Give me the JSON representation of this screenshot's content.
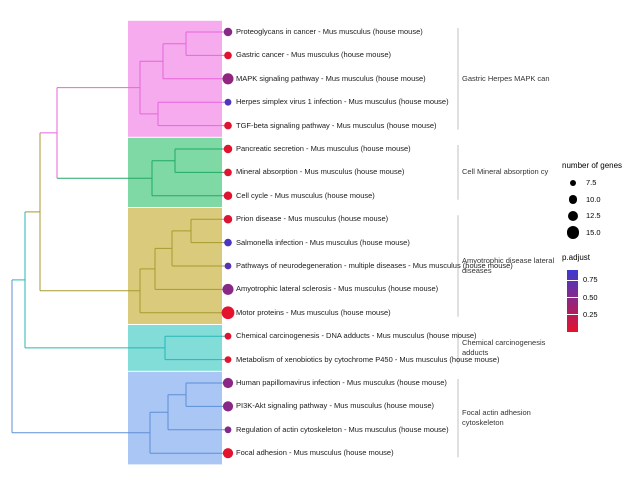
{
  "chart_data": {
    "type": "dendrogram",
    "title": "",
    "items": [
      {
        "label": "Proteoglycans in cancer - Mus musculus (house mouse)",
        "cluster": 0,
        "genes": 10,
        "padj": 0.5
      },
      {
        "label": "Gastric cancer - Mus musculus (house mouse)",
        "cluster": 0,
        "genes": 9,
        "padj": 0.03
      },
      {
        "label": "MAPK signaling pathway - Mus musculus (house mouse)",
        "cluster": 0,
        "genes": 13,
        "padj": 0.45
      },
      {
        "label": "Herpes simplex virus 1 infection - Mus musculus (house mouse)",
        "cluster": 0,
        "genes": 8,
        "padj": 0.8
      },
      {
        "label": "TGF-beta signaling pathway - Mus musculus (house mouse)",
        "cluster": 0,
        "genes": 9,
        "padj": 0.04
      },
      {
        "label": "Pancreatic secretion - Mus musculus (house mouse)",
        "cluster": 1,
        "genes": 10,
        "padj": 0.02
      },
      {
        "label": "Mineral absorption - Mus musculus (house mouse)",
        "cluster": 1,
        "genes": 9,
        "padj": 0.03
      },
      {
        "label": "Cell cycle - Mus musculus (house mouse)",
        "cluster": 1,
        "genes": 10,
        "padj": 0.03
      },
      {
        "label": "Prion disease - Mus musculus (house mouse)",
        "cluster": 2,
        "genes": 10,
        "padj": 0.05
      },
      {
        "label": "Salmonella infection - Mus musculus (house mouse)",
        "cluster": 2,
        "genes": 9,
        "padj": 0.82
      },
      {
        "label": "Pathways of neurodegeneration - multiple diseases - Mus musculus (house mouse)",
        "cluster": 2,
        "genes": 8,
        "padj": 0.75
      },
      {
        "label": "Amyotrophic lateral sclerosis - Mus musculus (house mouse)",
        "cluster": 2,
        "genes": 13,
        "padj": 0.5
      },
      {
        "label": "Motor proteins - Mus musculus (house mouse)",
        "cluster": 2,
        "genes": 15,
        "padj": 0.01
      },
      {
        "label": "Chemical carcinogenesis - DNA adducts - Mus musculus (house mouse)",
        "cluster": 3,
        "genes": 8,
        "padj": 0.03
      },
      {
        "label": "Metabolism of xenobiotics by cytochrome P450 - Mus musculus (house mouse)",
        "cluster": 3,
        "genes": 8,
        "padj": 0.04
      },
      {
        "label": "Human papillomavirus infection - Mus musculus (house mouse)",
        "cluster": 4,
        "genes": 12,
        "padj": 0.48
      },
      {
        "label": "PI3K-Akt signaling pathway - Mus musculus (house mouse)",
        "cluster": 4,
        "genes": 12,
        "padj": 0.5
      },
      {
        "label": "Regulation of actin cytoskeleton - Mus musculus (house mouse)",
        "cluster": 4,
        "genes": 8,
        "padj": 0.52
      },
      {
        "label": "Focal adhesion - Mus musculus (house mouse)",
        "cluster": 4,
        "genes": 12,
        "padj": 0.02
      }
    ],
    "clusters": [
      {
        "label_lines": [
          "Gastric Herpes MAPK can"
        ],
        "fill": "#F6ABEE",
        "line": "#E765DC"
      },
      {
        "label_lines": [
          "Cell Mineral absorption cy"
        ],
        "fill": "#7ED9A5",
        "line": "#23A966"
      },
      {
        "label_lines": [
          "Amyotrophic disease lateral",
          "diseases"
        ],
        "fill": "#DACB7C",
        "line": "#A79A2E"
      },
      {
        "label_lines": [
          "Chemical carcinogenesis",
          "adducts"
        ],
        "fill": "#82DDD8",
        "line": "#27B7B3"
      },
      {
        "label_lines": [
          "Focal actin adhesion",
          "cytoskeleton"
        ],
        "fill": "#A9C6F5",
        "line": "#5F8FD8"
      }
    ],
    "dendrogram_segments": [
      [
        186,
        32,
        228,
        32,
        0
      ],
      [
        186,
        55.4,
        228,
        55.4,
        0
      ],
      [
        186,
        32,
        186,
        55.4,
        0
      ],
      [
        163,
        43.7,
        186,
        43.7,
        0
      ],
      [
        163,
        78.8,
        228,
        78.8,
        0
      ],
      [
        163,
        43.7,
        163,
        78.8,
        0
      ],
      [
        158,
        102.2,
        228,
        102.2,
        0
      ],
      [
        158,
        125.6,
        228,
        125.6,
        0
      ],
      [
        158,
        102.2,
        158,
        125.6,
        0
      ],
      [
        140,
        61.2,
        163,
        61.2,
        0
      ],
      [
        140,
        113.9,
        158,
        113.9,
        0
      ],
      [
        140,
        61.2,
        140,
        113.9,
        0
      ],
      [
        57,
        87.6,
        140,
        87.6,
        0
      ],
      [
        57,
        87.6,
        57,
        178.2,
        0
      ],
      [
        40,
        132.9,
        57,
        132.9,
        0
      ],
      [
        175,
        149,
        228,
        149,
        1
      ],
      [
        175,
        172.4,
        228,
        172.4,
        1
      ],
      [
        175,
        149,
        175,
        172.4,
        1
      ],
      [
        152,
        160.7,
        175,
        160.7,
        1
      ],
      [
        152,
        195.8,
        228,
        195.8,
        1
      ],
      [
        152,
        160.7,
        152,
        195.8,
        1
      ],
      [
        57,
        178.2,
        152,
        178.2,
        1
      ],
      [
        191,
        219.2,
        228,
        219.2,
        2
      ],
      [
        191,
        242.6,
        228,
        242.6,
        2
      ],
      [
        191,
        219.2,
        191,
        242.6,
        2
      ],
      [
        172,
        230.9,
        191,
        230.9,
        2
      ],
      [
        172,
        266,
        228,
        266,
        2
      ],
      [
        172,
        230.9,
        172,
        266,
        2
      ],
      [
        155,
        248.4,
        172,
        248.4,
        2
      ],
      [
        155,
        289.4,
        228,
        289.4,
        2
      ],
      [
        155,
        248.4,
        155,
        289.4,
        2
      ],
      [
        140,
        268.9,
        155,
        268.9,
        2
      ],
      [
        140,
        312.8,
        228,
        312.8,
        2
      ],
      [
        140,
        268.9,
        140,
        312.8,
        2
      ],
      [
        40,
        290.8,
        140,
        290.8,
        2
      ],
      [
        40,
        132.9,
        40,
        290.8,
        2
      ],
      [
        25,
        211.9,
        40,
        211.9,
        2
      ],
      [
        165,
        336.2,
        228,
        336.2,
        3
      ],
      [
        165,
        359.6,
        228,
        359.6,
        3
      ],
      [
        165,
        336.2,
        165,
        359.6,
        3
      ],
      [
        25,
        347.9,
        165,
        347.9,
        3
      ],
      [
        25,
        211.9,
        25,
        347.9,
        3
      ],
      [
        12,
        279.9,
        25,
        279.9,
        3
      ],
      [
        186,
        383,
        228,
        383,
        4
      ],
      [
        186,
        406.4,
        228,
        406.4,
        4
      ],
      [
        186,
        383,
        186,
        406.4,
        4
      ],
      [
        168,
        394.7,
        186,
        394.7,
        4
      ],
      [
        168,
        429.8,
        228,
        429.8,
        4
      ],
      [
        168,
        394.7,
        168,
        429.8,
        4
      ],
      [
        150,
        412.2,
        168,
        412.2,
        4
      ],
      [
        150,
        453.2,
        228,
        453.2,
        4
      ],
      [
        150,
        412.2,
        150,
        453.2,
        4
      ],
      [
        12,
        432.7,
        150,
        432.7,
        4
      ],
      [
        12,
        279.9,
        12,
        432.7,
        4
      ]
    ],
    "legend": {
      "size_legend": {
        "title": "number of genes",
        "values": [
          7.5,
          10.0,
          12.5,
          15.0
        ]
      },
      "color_legend": {
        "title": "p.adjust",
        "ticks": [
          0.75,
          0.5,
          0.25
        ],
        "low_color": "#E6122A",
        "high_color": "#3C3AD2"
      }
    }
  }
}
